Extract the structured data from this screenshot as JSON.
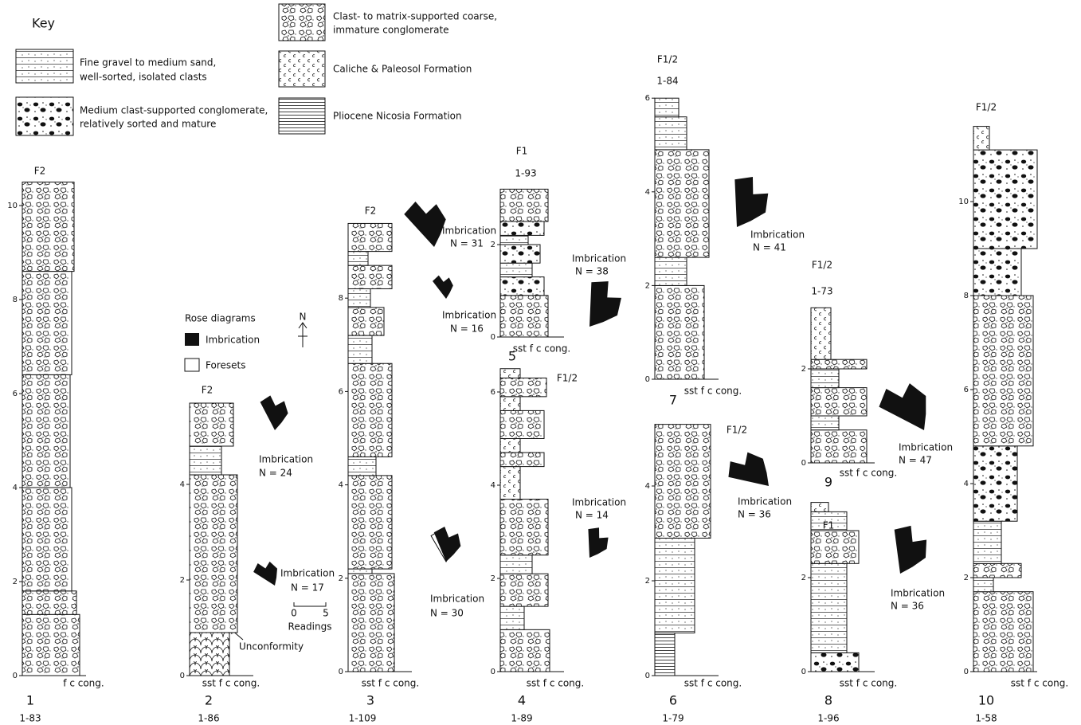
{
  "key": {
    "title": "Key",
    "items": [
      {
        "lines": [
          "Fine gravel to medium sand,",
          "well-sorted, isolated clasts"
        ]
      },
      {
        "lines": [
          "Medium clast-supported conglomerate,",
          "relatively sorted and mature"
        ]
      },
      {
        "lines": [
          "Clast- to matrix-supported coarse,",
          "immature conglomerate"
        ]
      },
      {
        "lines": [
          "Caliche & Paleosol Formation"
        ]
      },
      {
        "lines": [
          "Pliocene Nicosia Formation"
        ]
      }
    ]
  },
  "rose_legend": {
    "title": "Rose diagrams",
    "imbrication": "Imbrication",
    "foresets": "Foresets",
    "north": "N",
    "scale": {
      "min": 0,
      "max": 5,
      "label": "Readings"
    }
  },
  "annotation": "Unconformity",
  "columns": [
    {
      "number": 1,
      "code": "1-83",
      "facies": "F2",
      "ticks": [
        0,
        2,
        4,
        6,
        8,
        10
      ],
      "axis_label": "f c cong.",
      "roses": []
    },
    {
      "number": 2,
      "code": "1-86",
      "facies": "F2",
      "ticks": [
        0,
        2,
        4
      ],
      "axis_label": "sst f c cong.",
      "roses": [
        {
          "label": "Imbrication",
          "n": "N = 24"
        },
        {
          "label": "Imbrication",
          "n": "N = 17"
        }
      ]
    },
    {
      "number": 3,
      "code": "1-109",
      "facies": "F2",
      "ticks": [
        0,
        2,
        4,
        6,
        8
      ],
      "axis_label": "sst f c cong.",
      "roses": [
        {
          "label": "Imbrication",
          "n": "N = 30"
        },
        {
          "label": "Imbrication",
          "n": "N = 31"
        },
        {
          "label": "Imbrication",
          "n": "N = 16"
        }
      ]
    },
    {
      "number": 5,
      "code": "1-93",
      "facies": "F1",
      "ticks": [
        0,
        2
      ],
      "axis_label": "sst f c cong.",
      "roses": [
        {
          "label": "Imbrication",
          "n": "N = 38"
        }
      ]
    },
    {
      "number": 4,
      "code": "1-89",
      "facies": "F1/2",
      "ticks": [
        0,
        2,
        4,
        6
      ],
      "axis_label": "sst f c cong.",
      "roses": [
        {
          "label": "Imbrication",
          "n": "N = 14"
        }
      ]
    },
    {
      "number": 7,
      "code": "1-84",
      "facies": "F1/2",
      "ticks": [
        0,
        2,
        4,
        6
      ],
      "axis_label": "sst f c cong.",
      "roses": [
        {
          "label": "Imbrication",
          "n": "N = 41"
        }
      ]
    },
    {
      "number": 6,
      "code": "1-79",
      "facies": "F1/2",
      "ticks": [
        0,
        2,
        4
      ],
      "axis_label": "sst f c cong.",
      "roses": [
        {
          "label": "Imbrication",
          "n": "N = 36"
        }
      ]
    },
    {
      "number": 9,
      "code": "1-73",
      "facies": "F1/2",
      "ticks": [
        0,
        2
      ],
      "axis_label": "sst f c cong.",
      "roses": [
        {
          "label": "Imbrication",
          "n": "N = 47"
        }
      ]
    },
    {
      "number": 8,
      "code": "1-96",
      "facies": "F1",
      "ticks": [
        0,
        2
      ],
      "axis_label": "sst f c cong.",
      "roses": [
        {
          "label": "Imbrication",
          "n": "N = 36"
        }
      ]
    },
    {
      "number": 10,
      "code": "1-58",
      "facies": "F1/2",
      "ticks": [
        0,
        2,
        4,
        6,
        8,
        10
      ],
      "axis_label": "sst f c cong.",
      "roses": []
    }
  ]
}
